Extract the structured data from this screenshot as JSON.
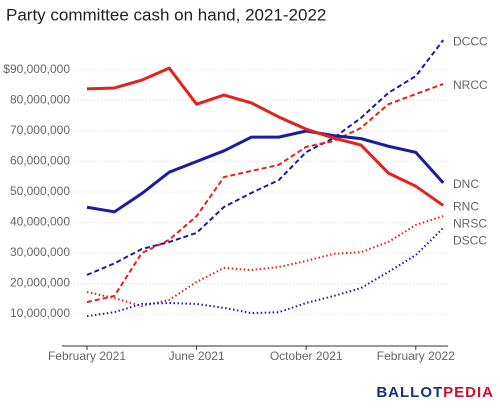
{
  "chart_data": {
    "type": "line",
    "title": "Party committee cash on hand, 2021-2022",
    "categories": [
      "February 2021",
      null,
      null,
      null,
      "June 2021",
      null,
      null,
      null,
      "October 2021",
      null,
      null,
      null,
      "February 2022",
      null
    ],
    "ylim": [
      0,
      100000000
    ],
    "yticks": [
      {
        "value": 10000000,
        "label": "10,000,000"
      },
      {
        "value": 20000000,
        "label": "20,000,000"
      },
      {
        "value": 30000000,
        "label": "30,000,000"
      },
      {
        "value": 40000000,
        "label": "40,000,000"
      },
      {
        "value": 50000000,
        "label": "50,000,000"
      },
      {
        "value": 60000000,
        "label": "60,000,000"
      },
      {
        "value": 70000000,
        "label": "70,000,000"
      },
      {
        "value": 80000000,
        "label": "80,000,000"
      },
      {
        "value": 90000000,
        "label": "$90,000,000"
      }
    ],
    "grid": true,
    "series": [
      {
        "name": "DCCC",
        "color": "#1c1ca3",
        "dash": "dashed",
        "values": [
          22800000,
          26600000,
          31300000,
          33600000,
          36600000,
          45100000,
          49700000,
          53900000,
          63100000,
          67700000,
          74300000,
          82500000,
          88000000,
          99800000
        ]
      },
      {
        "name": "NRCC",
        "color": "#e2231a",
        "dash": "dashed",
        "values": [
          13900000,
          15900000,
          30000000,
          34300000,
          42100000,
          54900000,
          56900000,
          58900000,
          64800000,
          66700000,
          71000000,
          78800000,
          82100000,
          85400000
        ]
      },
      {
        "name": "DNC",
        "color": "#1c1ca3",
        "dash": "solid",
        "values": [
          45000000,
          43500000,
          49500000,
          56500000,
          60000000,
          63500000,
          68000000,
          68000000,
          70000000,
          68500000,
          67500000,
          65000000,
          63000000,
          53000000
        ]
      },
      {
        "name": "RNC",
        "color": "#e2231a",
        "dash": "solid",
        "values": [
          83800000,
          84100000,
          86700000,
          90600000,
          78800000,
          81800000,
          79200000,
          74600000,
          70600000,
          67700000,
          65400000,
          56200000,
          51900000,
          45600000
        ]
      },
      {
        "name": "NRSC",
        "color": "#e2231a",
        "dash": "dotted",
        "values": [
          17200000,
          15200000,
          12600000,
          14600000,
          20500000,
          25100000,
          24400000,
          25400000,
          27400000,
          29700000,
          30300000,
          33600000,
          39200000,
          42100000
        ]
      },
      {
        "name": "DSCC",
        "color": "#1c1ca3",
        "dash": "dotted",
        "values": [
          9300000,
          10600000,
          13300000,
          13600000,
          13300000,
          12000000,
          10300000,
          10600000,
          13600000,
          15900000,
          18500000,
          23800000,
          29300000,
          38200000
        ]
      }
    ],
    "logo": [
      "BALLOT",
      "PEDIA"
    ]
  }
}
